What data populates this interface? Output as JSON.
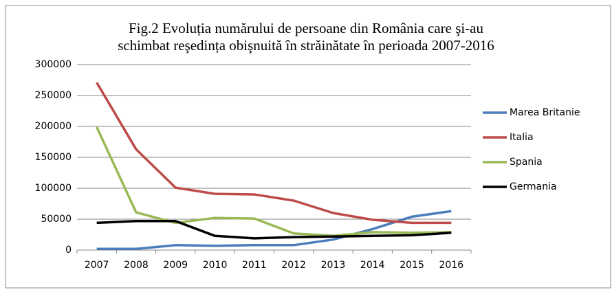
{
  "chart_data": {
    "type": "line",
    "title": [
      "Fig.2 Evoluția numărului de persoane din România care şi-au",
      "schimbat reşedința obişnuită în străinătate în perioada 2007-2016"
    ],
    "categories": [
      "2007",
      "2008",
      "2009",
      "2010",
      "2011",
      "2012",
      "2013",
      "2014",
      "2015",
      "2016"
    ],
    "series": [
      {
        "name": "Marea Britanie",
        "color": "#4a7ebb",
        "values": [
          2000,
          2000,
          8000,
          7000,
          8000,
          8000,
          17000,
          34000,
          54000,
          63000
        ]
      },
      {
        "name": "Italia",
        "color": "#be4b48",
        "values": [
          271000,
          163000,
          101000,
          91000,
          90000,
          80000,
          60000,
          49000,
          44000,
          44000
        ]
      },
      {
        "name": "Spania",
        "color": "#98b954",
        "values": [
          199000,
          61000,
          44000,
          52000,
          51000,
          27000,
          23000,
          29000,
          28000,
          29000
        ]
      },
      {
        "name": "Germania",
        "color": "#000000",
        "values": [
          44000,
          47000,
          47000,
          23000,
          19000,
          21000,
          22000,
          23000,
          24000,
          28000
        ]
      }
    ],
    "ylim": [
      0,
      300000
    ],
    "yticks": [
      0,
      50000,
      100000,
      150000,
      200000,
      250000,
      300000
    ],
    "grid": true,
    "legend": "right"
  }
}
